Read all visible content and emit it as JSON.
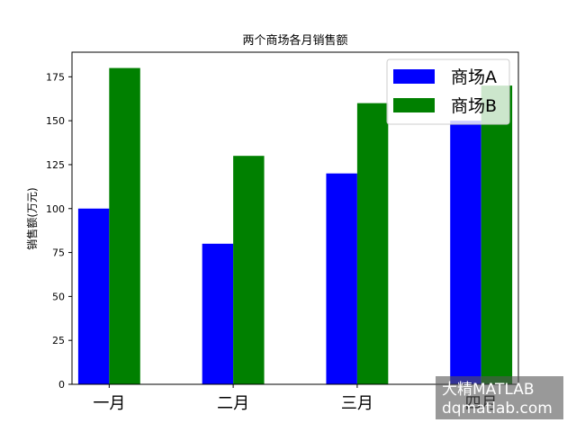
{
  "chart_data": {
    "type": "bar",
    "title": "两个商场各月销售额",
    "xlabel": "",
    "ylabel": "销售额(万元)",
    "categories": [
      "一月",
      "二月",
      "三月",
      "四月"
    ],
    "series": [
      {
        "name": "商场A",
        "values": [
          100,
          80,
          120,
          150
        ],
        "color": "#0000ff"
      },
      {
        "name": "商场B",
        "values": [
          180,
          130,
          160,
          170
        ],
        "color": "#008000"
      }
    ],
    "ylim": [
      0,
      189
    ],
    "yticks": [
      0,
      25,
      50,
      75,
      100,
      125,
      150,
      175
    ],
    "legend_placement": "top-right",
    "grid": false
  },
  "watermark": {
    "line1": "大精MATLAB",
    "line2": "dqmatlab.com"
  }
}
